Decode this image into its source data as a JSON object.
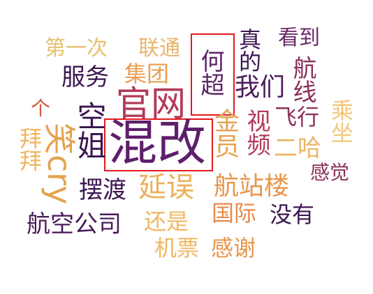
{
  "word_cloud": {
    "words": [
      {
        "text": "混改",
        "color": "#5e1f6a"
      },
      {
        "text": "官网",
        "color": "#b23a58"
      },
      {
        "text": "空姐",
        "color": "#3b1650"
      },
      {
        "text": "笑cry",
        "color": "#e3a34f"
      },
      {
        "text": "金员",
        "color": "#e3a34f"
      },
      {
        "text": "延误",
        "color": "#ebb15d"
      },
      {
        "text": "航站楼",
        "color": "#e8964b"
      },
      {
        "text": "集团",
        "color": "#e89f57"
      },
      {
        "text": "服务",
        "color": "#3b1650"
      },
      {
        "text": "第一次",
        "color": "#e7c06f"
      },
      {
        "text": "联通",
        "color": "#e7b66c"
      },
      {
        "text": "何超",
        "color": "#5e2566"
      },
      {
        "text": "真的",
        "color": "#3b1650"
      },
      {
        "text": "我们",
        "color": "#4c1d5b"
      },
      {
        "text": "看到",
        "color": "#6a2768"
      },
      {
        "text": "航线",
        "color": "#8b2f5a"
      },
      {
        "text": "视频",
        "color": "#b23a5a"
      },
      {
        "text": "飞行",
        "color": "#8b2f5a"
      },
      {
        "text": "二哈",
        "color": "#ecb468"
      },
      {
        "text": "乘坐",
        "color": "#f2c779"
      },
      {
        "text": "感觉",
        "color": "#8b2f5a"
      },
      {
        "text": "拜拜",
        "color": "#f0b762"
      },
      {
        "text": "个",
        "color": "#d6553f"
      },
      {
        "text": "摆渡",
        "color": "#3b1650"
      },
      {
        "text": "还是",
        "color": "#f0b762"
      },
      {
        "text": "国际",
        "color": "#e88a4a"
      },
      {
        "text": "没有",
        "color": "#3b1650"
      },
      {
        "text": "航空公司",
        "color": "#4c1d5b"
      },
      {
        "text": "机票",
        "color": "#f0b762"
      },
      {
        "text": "感谢",
        "color": "#e8964b"
      }
    ],
    "highlight_color": "#e3191c"
  }
}
